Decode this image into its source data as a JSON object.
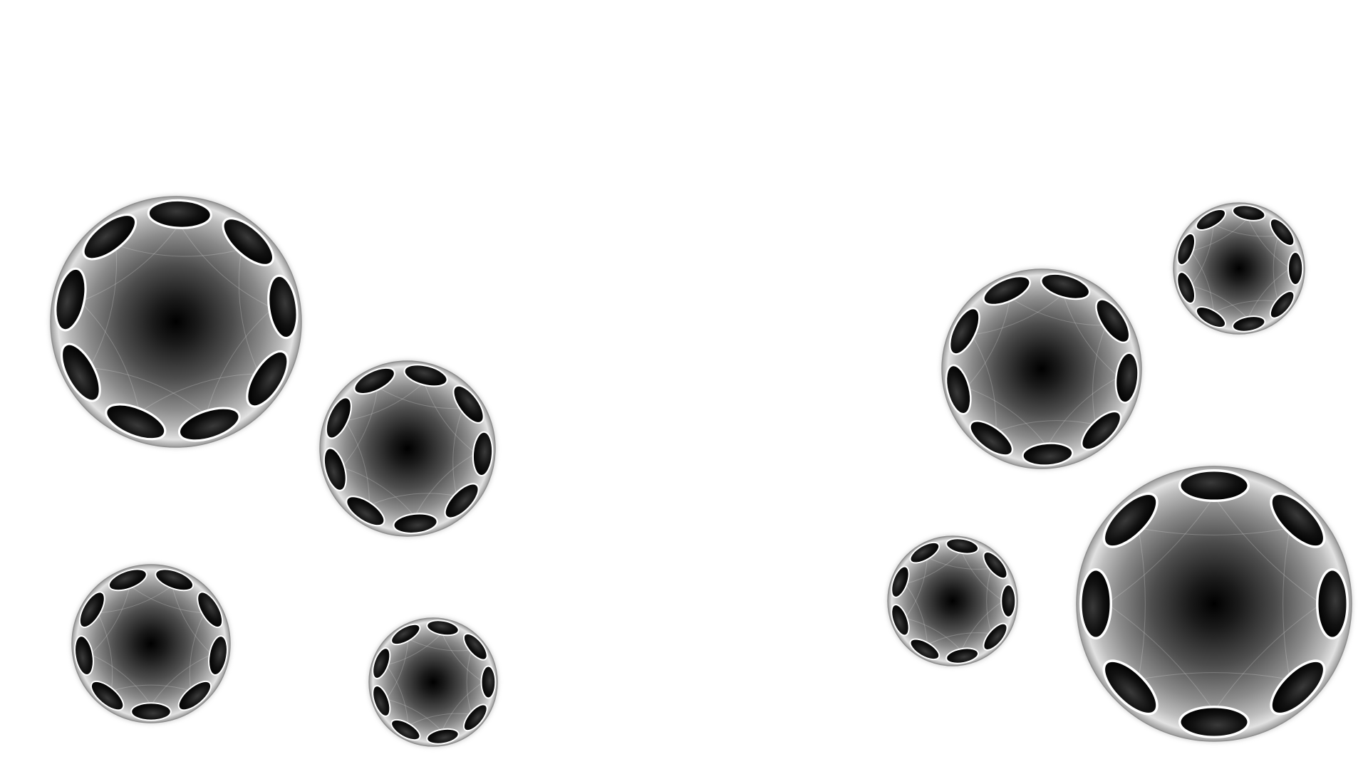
{
  "scene": {
    "background": "#ffffff",
    "subject": "orb",
    "orb_count": 8,
    "palette": {
      "core": "#050505",
      "mid": "#7a7a7a",
      "rim": "#d8d8d8",
      "pad": "#0c0c0c",
      "pad_outline": "#ffffff"
    },
    "orbs": [
      {
        "id": "orb-1",
        "pads": 9
      },
      {
        "id": "orb-2",
        "pads": 9
      },
      {
        "id": "orb-3",
        "pads": 9
      },
      {
        "id": "orb-4",
        "pads": 9
      },
      {
        "id": "orb-5",
        "pads": 9
      },
      {
        "id": "orb-6",
        "pads": 9
      },
      {
        "id": "orb-7",
        "pads": 9
      },
      {
        "id": "orb-8",
        "pads": 8
      }
    ]
  }
}
